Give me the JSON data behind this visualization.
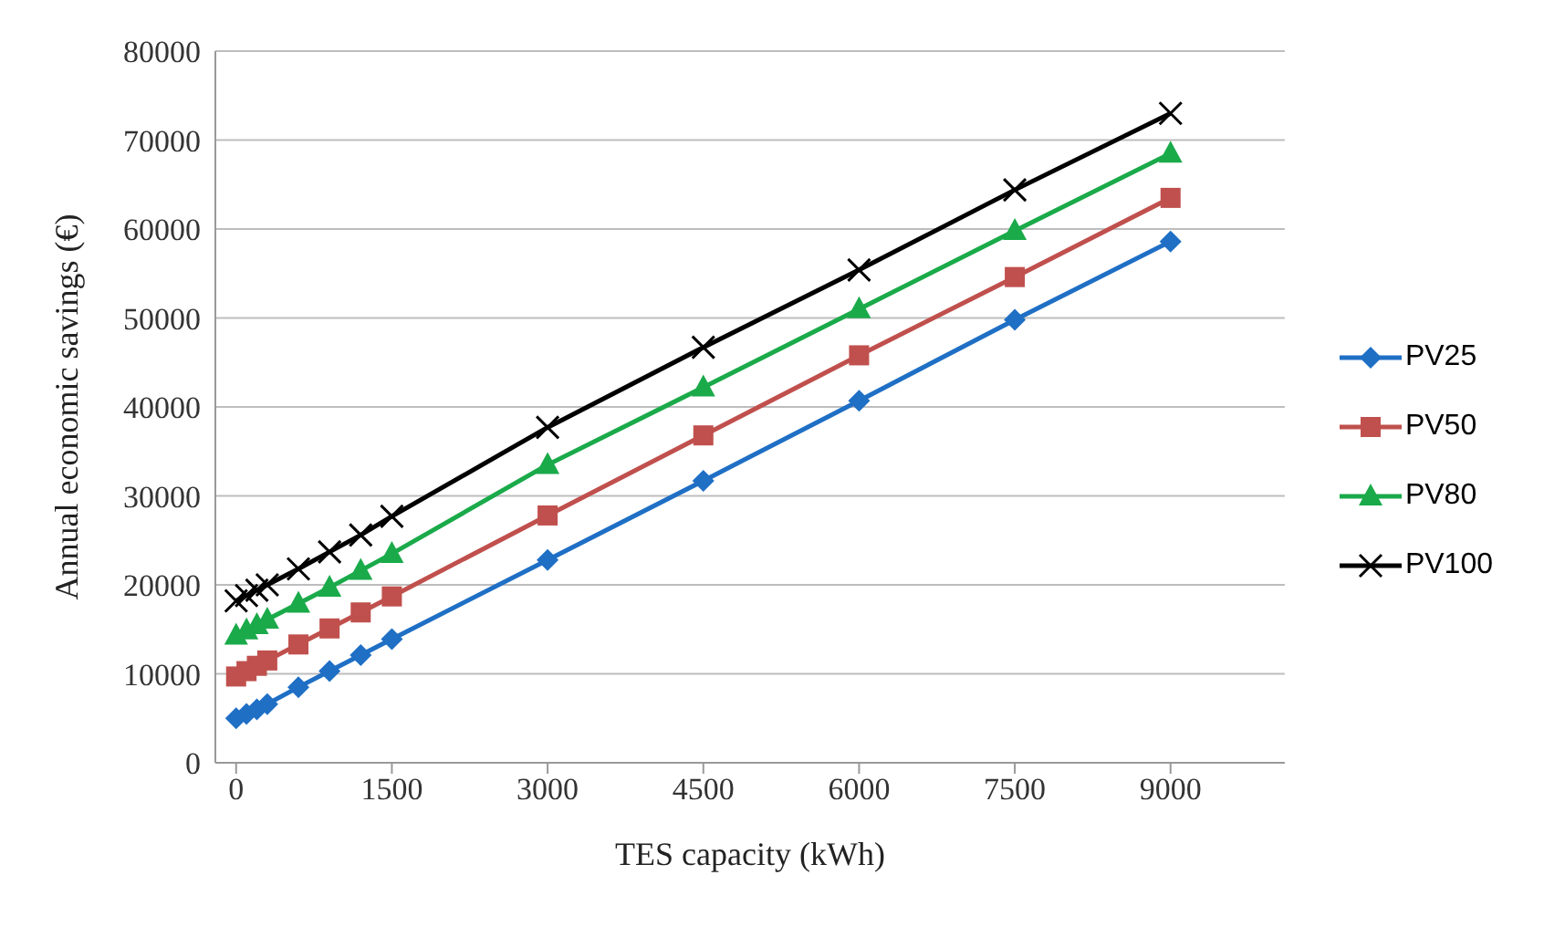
{
  "chart_data": {
    "type": "line",
    "xlabel": "TES capacity (kWh)",
    "ylabel": "Annual economic savings (€)",
    "x": [
      0,
      100,
      200,
      300,
      600,
      900,
      1200,
      1500,
      3000,
      4500,
      6000,
      7500,
      9000
    ],
    "series": [
      {
        "name": "PV25",
        "color": "#1f6fc5",
        "marker": "diamond",
        "values": [
          5000,
          5500,
          6000,
          6600,
          8500,
          10300,
          12100,
          13900,
          22800,
          31700,
          40700,
          49800,
          58600
        ]
      },
      {
        "name": "PV50",
        "color": "#c0504d",
        "marker": "square",
        "values": [
          9700,
          10300,
          10900,
          11500,
          13300,
          15100,
          16900,
          18700,
          27800,
          36800,
          45800,
          54600,
          63500
        ]
      },
      {
        "name": "PV80",
        "color": "#1aaa4a",
        "marker": "triangle",
        "values": [
          14300,
          14900,
          15500,
          16100,
          17900,
          19700,
          21600,
          23500,
          33500,
          42200,
          51000,
          59800,
          68500
        ]
      },
      {
        "name": "PV100",
        "color": "#000000",
        "marker": "cross",
        "values": [
          18200,
          18800,
          19400,
          20000,
          21800,
          23700,
          25600,
          27700,
          37700,
          46700,
          55400,
          64400,
          73000
        ]
      }
    ],
    "xlim": [
      -200,
      10100
    ],
    "xticks": [
      0,
      1500,
      3000,
      4500,
      6000,
      7500,
      9000
    ],
    "ylim": [
      0,
      80000
    ],
    "yticks": [
      0,
      10000,
      20000,
      30000,
      40000,
      50000,
      60000,
      70000,
      80000
    ],
    "grid": "y",
    "legend": "right",
    "line_style": "solid"
  }
}
